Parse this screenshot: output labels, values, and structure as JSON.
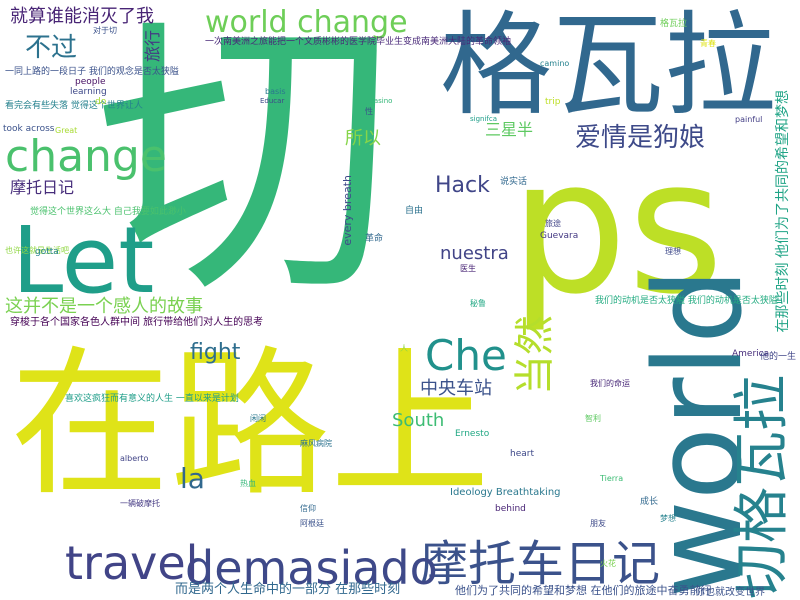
{
  "words": [
    {
      "text": "切",
      "color": "#35b779"
    },
    {
      "text": "ps",
      "color": "#bddf26"
    },
    {
      "text": "在路上",
      "color": "#dfe318"
    },
    {
      "text": "格瓦拉",
      "color": "#31688e"
    },
    {
      "text": "world",
      "color": "#2a788e"
    },
    {
      "text": "Let",
      "color": "#1f9e89"
    },
    {
      "text": "摩托车日记",
      "color": "#3b528b"
    },
    {
      "text": "demasiado",
      "color": "#3e4989"
    },
    {
      "text": "travel",
      "color": "#414487"
    },
    {
      "text": "change",
      "color": "#4ac16d"
    },
    {
      "text": "world change",
      "color": "#6ece58"
    },
    {
      "text": "切格瓦拉",
      "color": "#26828e"
    },
    {
      "text": "Che",
      "color": "#21918c"
    },
    {
      "text": "当然",
      "color": "#b5de2b"
    },
    {
      "text": "爱情是狗娘",
      "color": "#3e4a89"
    },
    {
      "text": "不过",
      "color": "#2c728e"
    },
    {
      "text": "就算谁能消灭了我",
      "color": "#482475"
    },
    {
      "text": "Hack",
      "color": "#404688"
    },
    {
      "text": "nuestra",
      "color": "#414487"
    },
    {
      "text": "中央车站",
      "color": "#3b528b"
    },
    {
      "text": "la",
      "color": "#31688e"
    },
    {
      "text": "South",
      "color": "#3dbc74"
    },
    {
      "text": "fight",
      "color": "#2e6e8e"
    },
    {
      "text": "摩托日记",
      "color": "#472d7b"
    },
    {
      "text": "这并不是一个感人的故事",
      "color": "#7ad151"
    },
    {
      "text": "所以",
      "color": "#86d549"
    },
    {
      "text": "旅行",
      "color": "#443983"
    },
    {
      "text": "三星半",
      "color": "#5ec962"
    },
    {
      "text": "在那些时刻 他们为了共同的希望和梦想",
      "color": "#20a486"
    },
    {
      "text": "而是两个人生命中的一部分 在那些时刻",
      "color": "#31688e"
    },
    {
      "text": "他们为了共同的希望和梦想 在他们的旅途中奋勇前行",
      "color": "#3b528b"
    },
    {
      "text": "一次南美洲之旅能把一个文质彬彬的医学院毕业生变成南美洲大陆的革命领袖",
      "color": "#482878"
    },
    {
      "text": "穿梭于各个国家各色人群中间 旅行带给他们对人生的思考",
      "color": "#440154"
    },
    {
      "text": "喜欢这疯狂而有意义的人生 一直以来是计划",
      "color": "#1f9e89"
    },
    {
      "text": "我们的动机是否太狭隘 我们的动机是否太狭隘",
      "color": "#25ac82"
    },
    {
      "text": "一同上路的一段日子 我们的观念是否太狭隘",
      "color": "#3b528b"
    },
    {
      "text": "看完会有些失落 觉得这个世界让人",
      "color": "#26828e"
    },
    {
      "text": "觉得这个世界这么大 自己我要如此渺小",
      "color": "#4ac16d"
    },
    {
      "text": "也许这就是生活吧",
      "color": "#90d743"
    },
    {
      "text": "learning",
      "color": "#3e4989"
    },
    {
      "text": "people",
      "color": "#471063"
    },
    {
      "text": "took across",
      "color": "#3b528b"
    },
    {
      "text": "Great",
      "color": "#a8db34"
    },
    {
      "text": "every breath",
      "color": "#3e4a89"
    },
    {
      "text": "革命",
      "color": "#31688e"
    },
    {
      "text": "自由",
      "color": "#2c728e"
    },
    {
      "text": "Guevara",
      "color": "#443983"
    },
    {
      "text": "Ernesto",
      "color": "#22a884"
    },
    {
      "text": "Ideology Breathtaking",
      "color": "#2a788e"
    },
    {
      "text": "heart",
      "color": "#3e4989"
    },
    {
      "text": "America",
      "color": "#472d7b"
    },
    {
      "text": "他的一生",
      "color": "#404688"
    },
    {
      "text": "你也就改变世界",
      "color": "#3b528b"
    },
    {
      "text": "成长",
      "color": "#31688e"
    },
    {
      "text": "behind",
      "color": "#482475"
    },
    {
      "text": "gotta",
      "color": "#26828e"
    },
    {
      "text": "Educar",
      "color": "#3e4a89"
    },
    {
      "text": "casino",
      "color": "#35b779"
    },
    {
      "text": "painful",
      "color": "#433e85"
    },
    {
      "text": "signifca",
      "color": "#1f9e89"
    },
    {
      "text": "trip",
      "color": "#bddf26"
    },
    {
      "text": "basis",
      "color": "#2a788e"
    },
    {
      "text": "do",
      "color": "#a8db34"
    },
    {
      "text": "对于切",
      "color": "#3b528b"
    },
    {
      "text": "格瓦拉",
      "color": "#6ece58"
    },
    {
      "text": "说实话",
      "color": "#31688e"
    },
    {
      "text": "我们的命运",
      "color": "#482878"
    },
    {
      "text": "火花",
      "color": "#7ad151"
    },
    {
      "text": "旅途",
      "color": "#414487"
    },
    {
      "text": "梦想",
      "color": "#26828e"
    },
    {
      "text": "理想",
      "color": "#3e4989"
    },
    {
      "text": "秘鲁",
      "color": "#22a884"
    },
    {
      "text": "智利",
      "color": "#5ec962"
    },
    {
      "text": "阿根廷",
      "color": "#3b528b"
    },
    {
      "text": "麻风病院",
      "color": "#2c728e"
    },
    {
      "text": "一辆破摩托",
      "color": "#443983"
    },
    {
      "text": "青春",
      "color": "#dfe318"
    },
    {
      "text": "热血",
      "color": "#35b779"
    },
    {
      "text": "信仰",
      "color": "#31688e"
    },
    {
      "text": "医生",
      "color": "#482475"
    },
    {
      "text": "朋友",
      "color": "#3e4a89"
    },
    {
      "text": "性",
      "color": "#3b528b"
    },
    {
      "text": "闲闲",
      "color": "#2a788e"
    },
    {
      "text": "人",
      "color": "#90d743"
    },
    {
      "text": "Tierra",
      "color": "#3dbc74"
    },
    {
      "text": "alberto",
      "color": "#414487"
    },
    {
      "text": "camino",
      "color": "#26828e"
    }
  ]
}
